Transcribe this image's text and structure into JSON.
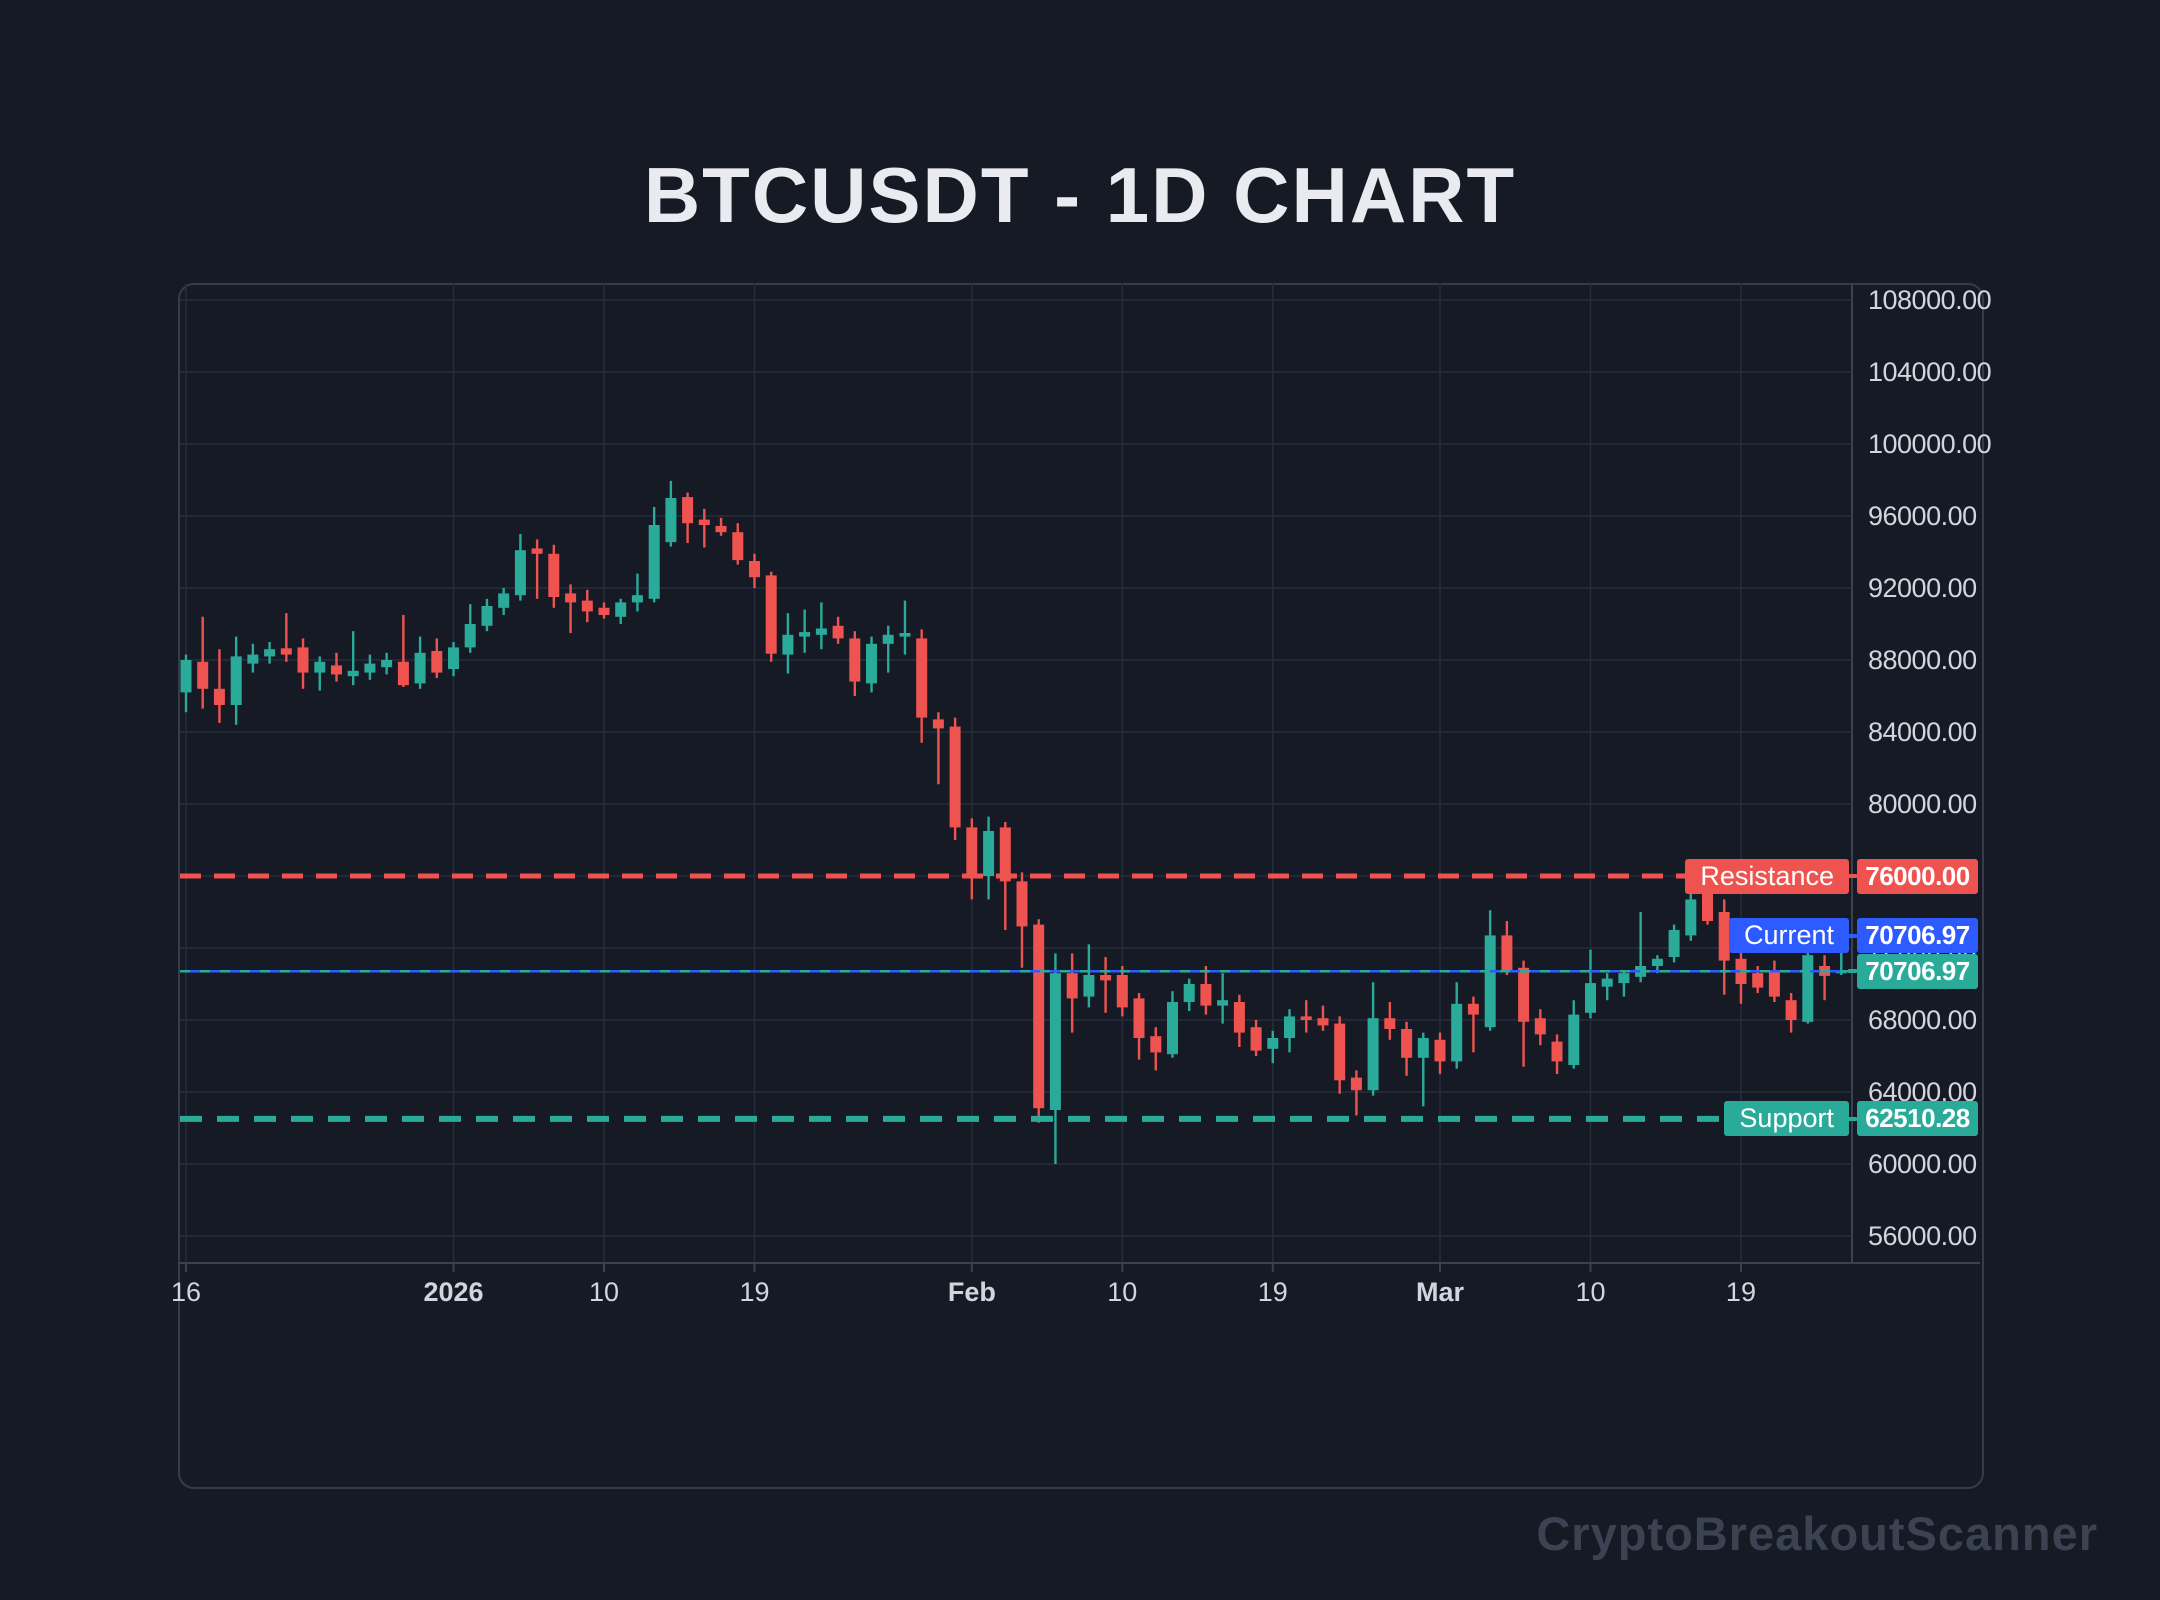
{
  "title": "BTCUSDT - 1D CHART",
  "watermark": "CryptoBreakoutScanner",
  "colors": {
    "background": "#161a25",
    "grid": "#272d3b",
    "axis_line": "#3a4150",
    "axis_text": "#d2d5dd",
    "up": "#2aab9a",
    "down": "#ef5350",
    "resistance": "#ef5350",
    "support": "#2aab9a",
    "current_blue": "#2e5bff",
    "title_text": "#e9ebf0",
    "watermark_text": "#3b4252"
  },
  "levels": {
    "resistance": {
      "label": "Resistance",
      "value": "76000.00",
      "price": 76000,
      "color": "#ef5350"
    },
    "current": {
      "label": "Current",
      "value": "70706.97",
      "price": 70706.97,
      "color": "#2e5bff"
    },
    "last_price": {
      "value": "70706.97",
      "price": 70706.97,
      "color": "#2aab9a"
    },
    "support": {
      "label": "Support",
      "value": "62510.28",
      "price": 62510.28,
      "color": "#2aab9a"
    }
  },
  "chart_data": {
    "type": "candlestick",
    "symbol": "BTCUSDT",
    "interval": "1D",
    "grid": true,
    "y_axis": {
      "ticks": [
        108000,
        104000,
        100000,
        96000,
        92000,
        88000,
        84000,
        80000,
        76000,
        72000,
        68000,
        64000,
        60000,
        56000
      ],
      "tick_labels": [
        "108000.00",
        "104000.00",
        "100000.00",
        "96000.00",
        "92000.00",
        "88000.00",
        "84000.00",
        "80000.00",
        "76000.00",
        "72000.00",
        "68000.00",
        "64000.00",
        "60000.00",
        "56000.00"
      ],
      "range": [
        54000,
        109000
      ]
    },
    "x_axis": {
      "ticks": [
        {
          "label": "16",
          "index": 0,
          "bold": false
        },
        {
          "label": "2026",
          "index": 16,
          "bold": true
        },
        {
          "label": "10",
          "index": 25,
          "bold": false
        },
        {
          "label": "19",
          "index": 34,
          "bold": false
        },
        {
          "label": "Feb",
          "index": 47,
          "bold": true
        },
        {
          "label": "10",
          "index": 56,
          "bold": false
        },
        {
          "label": "19",
          "index": 65,
          "bold": false
        },
        {
          "label": "Mar",
          "index": 75,
          "bold": true
        },
        {
          "label": "10",
          "index": 84,
          "bold": false
        },
        {
          "label": "19",
          "index": 93,
          "bold": false
        }
      ]
    },
    "candle_fields": [
      "date",
      "open",
      "high",
      "low",
      "close"
    ],
    "candles": [
      [
        "Dec 16",
        86200,
        88300,
        85100,
        88000
      ],
      [
        "Dec 17",
        87900,
        90400,
        85300,
        86400
      ],
      [
        "Dec 18",
        86400,
        88600,
        84500,
        85500
      ],
      [
        "Dec 19",
        85500,
        89300,
        84400,
        88200
      ],
      [
        "Dec 20",
        87800,
        88900,
        87300,
        88300
      ],
      [
        "Dec 21",
        88200,
        89000,
        87800,
        88600
      ],
      [
        "Dec 22",
        88650,
        90600,
        87900,
        88300
      ],
      [
        "Dec 23",
        88700,
        89200,
        86400,
        87300
      ],
      [
        "Dec 24",
        87300,
        88200,
        86300,
        87900
      ],
      [
        "Dec 25",
        87700,
        88400,
        86800,
        87200
      ],
      [
        "Dec 26",
        87100,
        89600,
        86600,
        87400
      ],
      [
        "Dec 27",
        87300,
        88300,
        86900,
        87800
      ],
      [
        "Dec 28",
        87600,
        88400,
        87200,
        88000
      ],
      [
        "Dec 29",
        87900,
        90500,
        86500,
        86600
      ],
      [
        "Dec 30",
        86700,
        89300,
        86400,
        88400
      ],
      [
        "Dec 31",
        88500,
        89200,
        87000,
        87300
      ],
      [
        "Jan 1",
        87500,
        89000,
        87100,
        88700
      ],
      [
        "Jan 2",
        88700,
        91100,
        88400,
        90000
      ],
      [
        "Jan 3",
        89900,
        91400,
        89600,
        91000
      ],
      [
        "Jan 4",
        90900,
        92000,
        90500,
        91700
      ],
      [
        "Jan 5",
        91600,
        95000,
        91300,
        94100
      ],
      [
        "Jan 6",
        94200,
        94700,
        91400,
        93900
      ],
      [
        "Jan 7",
        93900,
        94400,
        90900,
        91500
      ],
      [
        "Jan 8",
        91700,
        92200,
        89500,
        91200
      ],
      [
        "Jan 9",
        91300,
        91900,
        90100,
        90700
      ],
      [
        "Jan 10",
        90900,
        91200,
        90300,
        90500
      ],
      [
        "Jan 11",
        90400,
        91400,
        90000,
        91200
      ],
      [
        "Jan 12",
        91200,
        92800,
        90700,
        91600
      ],
      [
        "Jan 13",
        91400,
        96500,
        91200,
        95500
      ],
      [
        "Jan 14",
        94550,
        97950,
        94300,
        97000
      ],
      [
        "Jan 15",
        97050,
        97300,
        94500,
        95600
      ],
      [
        "Jan 16",
        95800,
        96400,
        94250,
        95500
      ],
      [
        "Jan 17",
        95450,
        95900,
        94900,
        95100
      ],
      [
        "Jan 18",
        95100,
        95600,
        93300,
        93550
      ],
      [
        "Jan 19",
        93500,
        93900,
        92000,
        92600
      ],
      [
        "Jan 20",
        92700,
        92900,
        87900,
        88350
      ],
      [
        "Jan 21",
        88300,
        90600,
        87250,
        89400
      ],
      [
        "Jan 22",
        89300,
        90800,
        88400,
        89550
      ],
      [
        "Jan 23",
        89400,
        91200,
        88600,
        89750
      ],
      [
        "Jan 24",
        89900,
        90400,
        88900,
        89200
      ],
      [
        "Jan 25",
        89200,
        89600,
        86000,
        86800
      ],
      [
        "Jan 26",
        86700,
        89300,
        86200,
        88900
      ],
      [
        "Jan 27",
        88900,
        89900,
        87300,
        89400
      ],
      [
        "Jan 28",
        89300,
        91300,
        88300,
        89500
      ],
      [
        "Jan 29",
        89200,
        89700,
        83400,
        84800
      ],
      [
        "Jan 30",
        84700,
        85100,
        81100,
        84200
      ],
      [
        "Jan 31",
        84300,
        84800,
        78000,
        78700
      ],
      [
        "Feb 1",
        78700,
        79200,
        74700,
        75900
      ],
      [
        "Feb 2",
        76000,
        79300,
        74700,
        78500
      ],
      [
        "Feb 3",
        78700,
        79000,
        73000,
        75700
      ],
      [
        "Feb 4",
        75700,
        76200,
        70900,
        73200
      ],
      [
        "Feb 5",
        73300,
        73600,
        62300,
        63100
      ],
      [
        "Feb 6",
        63000,
        71700,
        60000,
        70600
      ],
      [
        "Feb 7",
        70600,
        71700,
        67300,
        69200
      ],
      [
        "Feb 8",
        69300,
        72200,
        68700,
        70500
      ],
      [
        "Feb 9",
        70500,
        71500,
        68400,
        70200
      ],
      [
        "Feb 10",
        70500,
        71000,
        68200,
        68700
      ],
      [
        "Feb 11",
        69200,
        69500,
        65800,
        67000
      ],
      [
        "Feb 12",
        67100,
        67600,
        65200,
        66200
      ],
      [
        "Feb 13",
        66100,
        69600,
        65900,
        69000
      ],
      [
        "Feb 14",
        69000,
        70300,
        68500,
        70000
      ],
      [
        "Feb 15",
        70000,
        71000,
        68300,
        68800
      ],
      [
        "Feb 16",
        68800,
        70600,
        67800,
        69100
      ],
      [
        "Feb 17",
        69000,
        69400,
        66500,
        67300
      ],
      [
        "Feb 18",
        67600,
        68000,
        66000,
        66300
      ],
      [
        "Feb 19",
        66400,
        67400,
        65600,
        67000
      ],
      [
        "Feb 20",
        67000,
        68600,
        66200,
        68200
      ],
      [
        "Feb 21",
        68200,
        69100,
        67300,
        68000
      ],
      [
        "Feb 22",
        68100,
        68800,
        67400,
        67700
      ],
      [
        "Feb 23",
        67800,
        68200,
        63900,
        64650
      ],
      [
        "Feb 24",
        64800,
        65200,
        62700,
        64100
      ],
      [
        "Feb 25",
        64100,
        70100,
        63800,
        68100
      ],
      [
        "Feb 26",
        68100,
        69000,
        66900,
        67500
      ],
      [
        "Feb 27",
        67500,
        67900,
        64900,
        65900
      ],
      [
        "Feb 28",
        65900,
        67300,
        63200,
        67000
      ],
      [
        "Mar 1",
        66900,
        67300,
        65000,
        65700
      ],
      [
        "Mar 2",
        65700,
        70100,
        65300,
        68900
      ],
      [
        "Mar 3",
        68900,
        69300,
        66200,
        68300
      ],
      [
        "Mar 4",
        67600,
        74100,
        67400,
        72700
      ],
      [
        "Mar 5",
        72700,
        73500,
        70500,
        70750
      ],
      [
        "Mar 6",
        70900,
        71300,
        65400,
        67900
      ],
      [
        "Mar 7",
        68100,
        68600,
        66600,
        67200
      ],
      [
        "Mar 8",
        66800,
        67200,
        65000,
        65700
      ],
      [
        "Mar 9",
        65500,
        69100,
        65300,
        68300
      ],
      [
        "Mar 10",
        68400,
        71900,
        68100,
        70050
      ],
      [
        "Mar 11",
        69850,
        70600,
        69100,
        70300
      ],
      [
        "Mar 12",
        70050,
        70700,
        69300,
        70600
      ],
      [
        "Mar 13",
        70400,
        74000,
        70100,
        71000
      ],
      [
        "Mar 14",
        71000,
        71600,
        70600,
        71400
      ],
      [
        "Mar 15",
        71500,
        73300,
        71200,
        73000
      ],
      [
        "Mar 16",
        72700,
        75000,
        72400,
        74700
      ],
      [
        "Mar 17",
        75000,
        76200,
        73300,
        73500
      ],
      [
        "Mar 18",
        74000,
        74700,
        69400,
        71300
      ],
      [
        "Mar 19",
        71400,
        71900,
        68900,
        70000
      ],
      [
        "Mar 20",
        70600,
        71000,
        69500,
        69800
      ],
      [
        "Mar 21",
        70700,
        71300,
        69000,
        69300
      ],
      [
        "Mar 22",
        69100,
        69500,
        67300,
        68000
      ],
      [
        "Mar 23",
        67900,
        72300,
        67800,
        71600
      ],
      [
        "Mar 24",
        71000,
        71600,
        69100,
        70450
      ],
      [
        "Mar 25",
        70600,
        72050,
        70500,
        70706.97
      ]
    ]
  }
}
